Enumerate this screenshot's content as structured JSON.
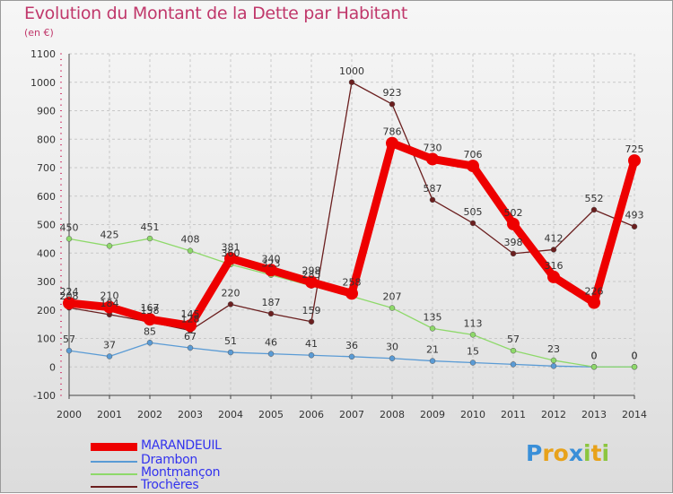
{
  "header": {
    "title": "Evolution du Montant de la Dette par Habitant",
    "subtitle": "(en €)"
  },
  "logo": {
    "text": "Proxiti"
  },
  "chart_data": {
    "type": "line",
    "x": [
      "2000",
      "2001",
      "2002",
      "2003",
      "2004",
      "2005",
      "2006",
      "2007",
      "2008",
      "2009",
      "2010",
      "2011",
      "2012",
      "2013",
      "2014"
    ],
    "ylim": [
      -100,
      1100
    ],
    "yticks": [
      -100,
      0,
      100,
      200,
      300,
      400,
      500,
      600,
      700,
      800,
      900,
      1000,
      1100
    ],
    "grid": true,
    "legend_placement": "bottom-left",
    "series": [
      {
        "name": "MARANDEUIL",
        "color": "#ee0000",
        "values": [
          224,
          210,
          167,
          145,
          381,
          340,
          298,
          258,
          786,
          730,
          706,
          502,
          316,
          226,
          725
        ]
      },
      {
        "name": "Drambon",
        "color": "#5a9bd5",
        "values": [
          57,
          37,
          85,
          67,
          51,
          46,
          41,
          36,
          30,
          21,
          15,
          9,
          3,
          0,
          0
        ]
      },
      {
        "name": "Montmançon",
        "color": "#8ed96a",
        "values": [
          450,
          425,
          451,
          408,
          360,
          323,
          285,
          248,
          207,
          135,
          113,
          57,
          23,
          0,
          0
        ]
      },
      {
        "name": "Trochères",
        "color": "#6b1f1f",
        "values": [
          208,
          184,
          158,
          128,
          220,
          187,
          159,
          1000,
          923,
          587,
          505,
          398,
          412,
          552,
          493
        ]
      }
    ],
    "data_labels": [
      [
        "224",
        "210",
        "167",
        "145",
        "381",
        "340",
        "298",
        "258",
        "786",
        "730",
        "706",
        "502",
        "316",
        "226",
        "725"
      ],
      [
        "57",
        "37",
        "85",
        "67",
        "51",
        "46",
        "41",
        "36",
        "30",
        "21",
        "15",
        "",
        "",
        "0",
        "0"
      ],
      [
        "450",
        "425",
        "451",
        "408",
        "360",
        "323",
        "285",
        "",
        "207",
        "135",
        "113",
        "57",
        "23",
        "0",
        "0"
      ],
      [
        "208",
        "184",
        "158",
        "128",
        "220",
        "187",
        "159",
        "1000",
        "923",
        "587",
        "505",
        "398",
        "412",
        "552",
        "493"
      ]
    ]
  }
}
